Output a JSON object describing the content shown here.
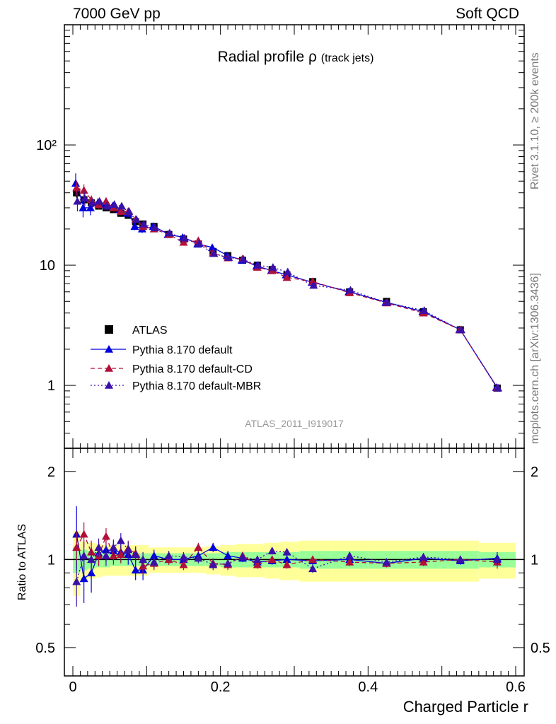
{
  "header": {
    "left": "7000 GeV pp",
    "right": "Soft QCD"
  },
  "side": {
    "top": "Rivet 3.1.10, ≥ 200k events",
    "bottom": "mcplots.cern.ch [arXiv:1306.3436]"
  },
  "watermark": "ATLAS_2011_I919017",
  "chart_data": [
    {
      "type": "scatter",
      "title": "Radial profile ρ",
      "subtitle": "(track jets)",
      "xlabel": "Charged Particle r",
      "ylabel": "",
      "xlim": [
        0,
        0.6
      ],
      "ylim": [
        0.3,
        1000
      ],
      "yscale": "log",
      "ytick_labels": [
        "1",
        "10",
        "10²"
      ],
      "legend_position": "lower-left",
      "x": [
        0.005,
        0.015,
        0.025,
        0.035,
        0.045,
        0.055,
        0.065,
        0.075,
        0.085,
        0.095,
        0.11,
        0.13,
        0.15,
        0.17,
        0.19,
        0.21,
        0.23,
        0.25,
        0.27,
        0.29,
        0.325,
        0.375,
        0.425,
        0.475,
        0.525,
        0.575
      ],
      "series": [
        {
          "name": "ATLAS",
          "marker": "square",
          "color": "#000000",
          "values": [
            40,
            35,
            33,
            31,
            30,
            29,
            27,
            26,
            23,
            22,
            21,
            18,
            16.5,
            15,
            13,
            12,
            11,
            10,
            9.2,
            8.3,
            7.3,
            6.0,
            5.0,
            4.1,
            2.9,
            0.95
          ],
          "errors": [
            4,
            3,
            2,
            1.5,
            1.5,
            1.2,
            1.2,
            1.2,
            1,
            1,
            0.8,
            0.6,
            0.5,
            0.5,
            0.4,
            0.4,
            0.3,
            0.3,
            0.3,
            0.3,
            0.2,
            0.2,
            0.15,
            0.12,
            0.1,
            0.04
          ]
        },
        {
          "name": "Pythia 8.170 default",
          "marker": "triangle",
          "color": "#0000dd",
          "line": "solid",
          "values": [
            48,
            30,
            30,
            33,
            32,
            31,
            29,
            27,
            21,
            20,
            21,
            18,
            17,
            15,
            14,
            12,
            11,
            9.8,
            9.0,
            8.3,
            7.2,
            6.0,
            4.9,
            4.1,
            2.9,
            0.96
          ],
          "errors": [
            10,
            5,
            4,
            3,
            3,
            2,
            2,
            2,
            1.5,
            1.5,
            1,
            0.8,
            0.6,
            0.5,
            0.5,
            0.4,
            0.3,
            0.3,
            0.3,
            0.3,
            0.2,
            0.2,
            0.15,
            0.12,
            0.1,
            0.04
          ]
        },
        {
          "name": "Pythia 8.170 default-CD",
          "marker": "triangle",
          "color": "#b0103a",
          "line": "dashed",
          "values": [
            44,
            42,
            35,
            32,
            34,
            30,
            28,
            28,
            24,
            21,
            20,
            18,
            15.5,
            16,
            12.6,
            11.5,
            11.3,
            9.6,
            9.0,
            7.9,
            7.3,
            5.9,
            4.85,
            4.0,
            2.9,
            0.95
          ],
          "errors": [
            6,
            5,
            3,
            2.5,
            2.5,
            2,
            2,
            2,
            1.5,
            1.5,
            1,
            0.8,
            0.5,
            0.5,
            0.4,
            0.4,
            0.3,
            0.3,
            0.3,
            0.3,
            0.2,
            0.2,
            0.15,
            0.12,
            0.1,
            0.04
          ]
        },
        {
          "name": "Pythia 8.170 default-MBR",
          "marker": "triangle",
          "color": "#3a10a8",
          "line": "dotted",
          "values": [
            34,
            36,
            33,
            34,
            31,
            32,
            31,
            28,
            24,
            22,
            20.5,
            18.5,
            16.8,
            15.2,
            12.5,
            11.6,
            11.2,
            10.0,
            9.6,
            8.8,
            6.8,
            6.2,
            4.9,
            4.2,
            2.9,
            0.95
          ],
          "errors": [
            6,
            5,
            3,
            2.5,
            2.5,
            2,
            2,
            2,
            1.5,
            1.5,
            1,
            0.8,
            0.6,
            0.5,
            0.4,
            0.4,
            0.3,
            0.3,
            0.3,
            0.3,
            0.2,
            0.2,
            0.15,
            0.12,
            0.1,
            0.04
          ]
        }
      ]
    },
    {
      "type": "scatter",
      "title": "",
      "xlabel": "Charged Particle r",
      "ylabel": "Ratio to ATLAS",
      "xlim": [
        0,
        0.6
      ],
      "ylim": [
        0.4,
        2.4
      ],
      "yscale": "log",
      "ytick_labels": [
        "0.5",
        "1",
        "2"
      ],
      "xtick_labels": [
        "0",
        "0.2",
        "0.4",
        "0.6"
      ],
      "bands": {
        "green_halfwidth": [
          0.1,
          0.08,
          0.07,
          0.06,
          0.06,
          0.05,
          0.05,
          0.05,
          0.05,
          0.05,
          0.05,
          0.05,
          0.05,
          0.05,
          0.05,
          0.06,
          0.06,
          0.06,
          0.06,
          0.06,
          0.07,
          0.07,
          0.07,
          0.07,
          0.07,
          0.06
        ],
        "yellow_halfwidth": [
          0.25,
          0.15,
          0.14,
          0.13,
          0.12,
          0.12,
          0.12,
          0.12,
          0.12,
          0.12,
          0.1,
          0.1,
          0.1,
          0.1,
          0.11,
          0.12,
          0.13,
          0.13,
          0.14,
          0.15,
          0.16,
          0.16,
          0.16,
          0.16,
          0.16,
          0.14
        ]
      },
      "series": [
        {
          "name": "Pythia 8.170 default",
          "color": "#0000dd",
          "line": "solid",
          "values": [
            1.22,
            0.86,
            0.9,
            1.05,
            1.08,
            1.07,
            1.06,
            1.04,
            0.92,
            0.92,
            1.03,
            1.0,
            1.0,
            1.03,
            1.1,
            1.03,
            1.01,
            0.98,
            0.99,
            1.0,
            0.99,
            1.0,
            0.97,
            1.01,
            0.99,
            1.01
          ],
          "errors": [
            0.3,
            0.15,
            0.13,
            0.1,
            0.1,
            0.08,
            0.08,
            0.08,
            0.07,
            0.07,
            0.05,
            0.04,
            0.04,
            0.04,
            0.04,
            0.04,
            0.03,
            0.03,
            0.03,
            0.03,
            0.03,
            0.03,
            0.03,
            0.03,
            0.03,
            0.05
          ]
        },
        {
          "name": "Pythia 8.170 default-CD",
          "color": "#b0103a",
          "line": "dashed",
          "values": [
            1.1,
            1.22,
            1.06,
            1.03,
            1.2,
            1.03,
            1.04,
            1.09,
            1.05,
            0.95,
            0.97,
            1.0,
            0.96,
            1.1,
            0.97,
            0.96,
            1.03,
            0.96,
            1.0,
            0.96,
            1.0,
            0.98,
            0.97,
            0.98,
            1.0,
            0.98
          ],
          "errors": [
            0.15,
            0.12,
            0.1,
            0.08,
            0.08,
            0.07,
            0.07,
            0.07,
            0.06,
            0.06,
            0.05,
            0.04,
            0.04,
            0.04,
            0.04,
            0.04,
            0.03,
            0.03,
            0.03,
            0.03,
            0.03,
            0.03,
            0.03,
            0.03,
            0.03,
            0.05
          ]
        },
        {
          "name": "Pythia 8.170 default-MBR",
          "color": "#3a10a8",
          "line": "dotted",
          "values": [
            0.84,
            1.03,
            1.0,
            1.1,
            1.03,
            1.1,
            1.16,
            1.08,
            1.04,
            1.0,
            0.98,
            1.03,
            1.02,
            1.01,
            0.96,
            0.97,
            1.02,
            1.0,
            1.07,
            1.06,
            0.93,
            1.03,
            0.98,
            1.02,
            1.0,
            1.0
          ],
          "errors": [
            0.15,
            0.12,
            0.1,
            0.08,
            0.08,
            0.07,
            0.07,
            0.07,
            0.06,
            0.06,
            0.05,
            0.04,
            0.04,
            0.04,
            0.04,
            0.04,
            0.03,
            0.03,
            0.03,
            0.03,
            0.03,
            0.03,
            0.03,
            0.03,
            0.03,
            0.05
          ]
        }
      ]
    }
  ]
}
